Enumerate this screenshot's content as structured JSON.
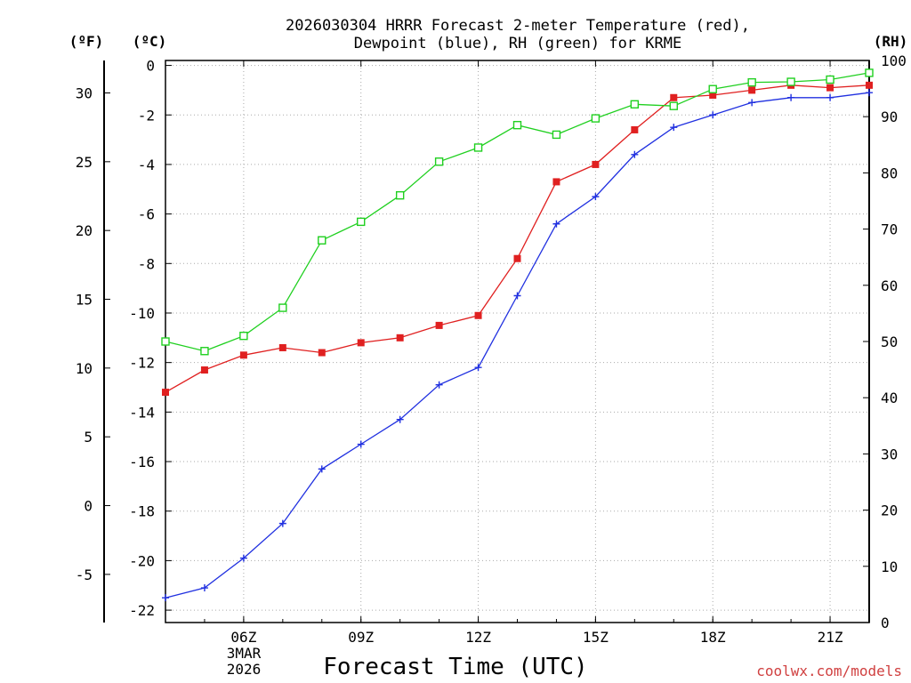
{
  "chart_data": {
    "type": "line",
    "title_line1": "2026030304 HRRR Forecast 2-meter Temperature (red),",
    "title_line2": "Dewpoint (blue), RH (green) for KRME",
    "xlabel": "Forecast Time (UTC)",
    "x_tick_labels": [
      "06Z",
      "09Z",
      "12Z",
      "15Z",
      "18Z",
      "21Z"
    ],
    "x_tick_hours": [
      6,
      9,
      12,
      15,
      18,
      21
    ],
    "date_label_line1": "3MAR",
    "date_label_line2": "2026",
    "xlim": [
      4,
      22
    ],
    "x_hours": [
      4,
      5,
      6,
      7,
      8,
      9,
      10,
      11,
      12,
      13,
      14,
      15,
      16,
      17,
      18,
      19,
      20,
      21,
      22
    ],
    "axes": {
      "fahrenheit": {
        "label": "(ºF)",
        "ticks": [
          "30",
          "25",
          "20",
          "15",
          "10",
          "5",
          "0",
          "-5"
        ],
        "tick_values": [
          30,
          25,
          20,
          15,
          10,
          5,
          0,
          -5
        ]
      },
      "celsius": {
        "label": "(ºC)",
        "ylim": [
          -22.5,
          0.2
        ],
        "ticks": [
          "0",
          "-2",
          "-4",
          "-6",
          "-8",
          "-10",
          "-12",
          "-14",
          "-16",
          "-18",
          "-20",
          "-22"
        ],
        "tick_values": [
          0,
          -2,
          -4,
          -6,
          -8,
          -10,
          -12,
          -14,
          -16,
          -18,
          -20,
          -22
        ]
      },
      "rh": {
        "label": "(RH)",
        "ylim": [
          0,
          100
        ],
        "ticks": [
          "100",
          "90",
          "80",
          "70",
          "60",
          "50",
          "40",
          "30",
          "20",
          "10",
          "0"
        ],
        "tick_values": [
          100,
          90,
          80,
          70,
          60,
          50,
          40,
          30,
          20,
          10,
          0
        ]
      }
    },
    "series": [
      {
        "name": "2-meter Temperature",
        "axis": "celsius",
        "color": "#e02020",
        "marker": "filled-square",
        "values": [
          -13.2,
          -12.3,
          -11.7,
          -11.4,
          -11.6,
          -11.2,
          -11.0,
          -10.5,
          -10.1,
          -7.8,
          -4.7,
          -4.0,
          -2.6,
          -1.3,
          -1.2,
          -1.0,
          -0.8,
          -0.9,
          -0.8
        ]
      },
      {
        "name": "Dewpoint",
        "axis": "celsius",
        "color": "#2030e0",
        "marker": "plus",
        "values": [
          -21.5,
          -21.1,
          -19.9,
          -18.5,
          -16.3,
          -15.3,
          -14.3,
          -12.9,
          -12.2,
          -9.3,
          -6.4,
          -5.3,
          -3.6,
          -2.5,
          -2.0,
          -1.5,
          -1.3,
          -1.3,
          -1.1
        ]
      },
      {
        "name": "RH",
        "axis": "rh",
        "color": "#20d020",
        "marker": "open-square",
        "values": [
          50,
          48.3,
          51,
          56,
          68,
          71.3,
          76,
          82,
          84.5,
          88.5,
          86.8,
          89.7,
          92.2,
          91.9,
          94.9,
          96.1,
          96.2,
          96.6,
          97.8
        ]
      }
    ]
  },
  "credit": "coolwx.com/models"
}
